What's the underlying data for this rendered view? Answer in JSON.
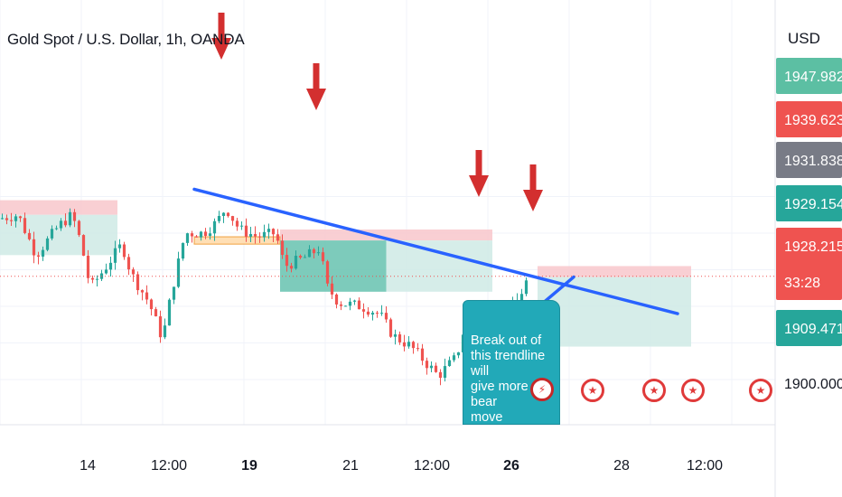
{
  "title": "Gold Spot / U.S. Dollar, 1h, OANDA",
  "currency": "USD",
  "callout_text": "Break out of\nthis trendline will\ngive more bear\nmove confirmation",
  "event_icon": "us-flag-icon",
  "colors": {
    "up": "#26a69a",
    "down": "#ef5350",
    "trendline": "#2962ff",
    "arrow": "#d32f2f",
    "stop_zone": "#f8c7cb",
    "target_zone": "#cfeae5",
    "target_zone_dark": "#5fbfab",
    "orange_zone": "#ffd9a8",
    "callout": "#22a9b8"
  },
  "price_labels": [
    {
      "value": "1947.982",
      "bg": "#5cbfa3",
      "fg": "#ffffff"
    },
    {
      "value": "1939.623",
      "bg": "#ef5350",
      "fg": "#ffffff"
    },
    {
      "value": "1931.838",
      "bg": "#787b86",
      "fg": "#ffffff"
    },
    {
      "value": "1929.154",
      "bg": "#26a69a",
      "fg": "#ffffff"
    },
    {
      "value": "1928.215",
      "bg": "#ef5350",
      "fg": "#ffffff",
      "sub": "33:28"
    },
    {
      "value": "1909.471",
      "bg": "#26a69a",
      "fg": "#ffffff"
    },
    {
      "value": "1900.000",
      "bg": "#ffffff",
      "fg": "#131722"
    }
  ],
  "chart_data": {
    "type": "candlestick",
    "title": "Gold Spot / U.S. Dollar, 1h, OANDA",
    "y_unit": "USD",
    "x_ticks": [
      "14",
      "12:00",
      "19",
      "21",
      "12:00",
      "26",
      "28",
      "12:00"
    ],
    "y_ticks": [
      1900.0
    ],
    "last_price": 1928.215,
    "countdown": "33:28",
    "price_path": [
      [
        0,
        1944
      ],
      [
        4,
        1945
      ],
      [
        8,
        1934
      ],
      [
        13,
        1942
      ],
      [
        16,
        1945
      ],
      [
        18,
        1937
      ],
      [
        20,
        1925
      ],
      [
        23,
        1930
      ],
      [
        27,
        1937
      ],
      [
        29,
        1929
      ],
      [
        33,
        1921
      ],
      [
        36,
        1911
      ],
      [
        38,
        1924
      ],
      [
        41,
        1940
      ],
      [
        45,
        1940
      ],
      [
        48,
        1943
      ],
      [
        50,
        1947
      ],
      [
        53,
        1941
      ],
      [
        57,
        1939
      ],
      [
        61,
        1940
      ],
      [
        63,
        1931
      ],
      [
        67,
        1933
      ],
      [
        71,
        1936
      ],
      [
        72,
        1926
      ],
      [
        75,
        1921
      ],
      [
        80,
        1920
      ],
      [
        84,
        1918
      ],
      [
        87,
        1912
      ],
      [
        91,
        1909
      ],
      [
        94,
        1905
      ],
      [
        97,
        1901
      ],
      [
        101,
        1906
      ],
      [
        103,
        1915
      ],
      [
        106,
        1905
      ],
      [
        109,
        1907
      ],
      [
        111,
        1915
      ],
      [
        114,
        1920
      ],
      [
        117,
        1928
      ]
    ],
    "trendlines": [
      {
        "from": [
          43,
          1952
        ],
        "to": [
          150,
          1918
        ]
      },
      {
        "from": [
          104,
          1904
        ],
        "to": [
          127,
          1928
        ]
      }
    ],
    "markers": [
      {
        "type": "down-arrow",
        "x": 49
      },
      {
        "type": "down-arrow",
        "x": 70
      },
      {
        "type": "down-arrow",
        "x": 106
      },
      {
        "type": "down-arrow",
        "x": 118
      }
    ],
    "zones": [
      {
        "type": "stop",
        "top": 1949,
        "bottom": 1945,
        "x0": 0,
        "x1": 26
      },
      {
        "type": "target",
        "top": 1945,
        "bottom": 1934,
        "x0": 0,
        "x1": 26
      },
      {
        "type": "stop",
        "top": 1941,
        "bottom": 1938,
        "x0": 62,
        "x1": 109
      },
      {
        "type": "target",
        "top": 1938,
        "bottom": 1924,
        "x0": 62,
        "x1": 109
      },
      {
        "type": "entry",
        "top": 1939,
        "bottom": 1937,
        "x0": 43,
        "x1": 62
      },
      {
        "type": "stop",
        "top": 1931,
        "bottom": 1928,
        "x0": 119,
        "x1": 153
      },
      {
        "type": "target",
        "top": 1928,
        "bottom": 1909,
        "x0": 119,
        "x1": 153
      }
    ]
  }
}
